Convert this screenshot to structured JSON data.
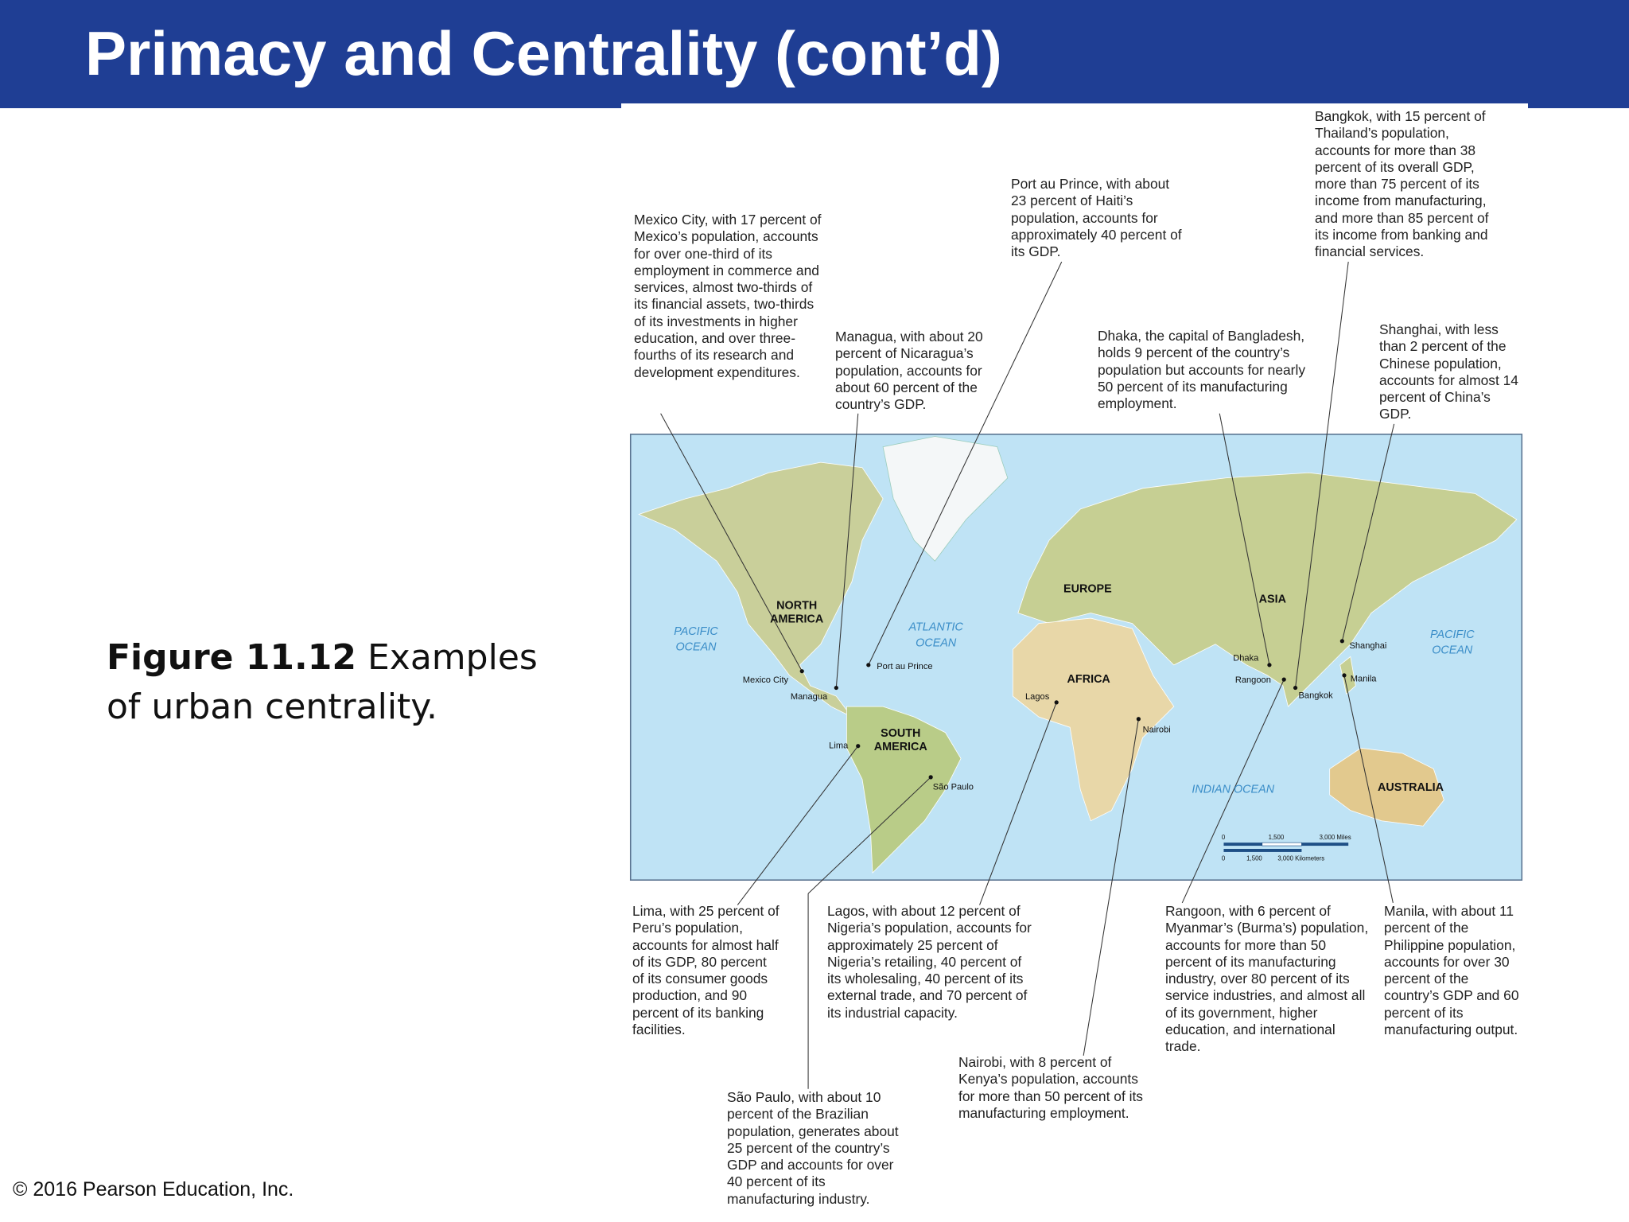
{
  "header": {
    "title": "Primacy and Centrality (cont’d)"
  },
  "caption": {
    "label": "Figure 11.12",
    "text": "Examples of urban centrality."
  },
  "footer": {
    "copyright": "© 2016 Pearson Education, Inc."
  },
  "callouts": [
    {
      "text": "Mexico City, with 17 percent of Mexico’s population, accounts for over one-third of its employment in commerce and services, almost two-thirds of its financial assets, two-thirds of its investments in higher education, and over three-fourths of its research and development expenditures."
    },
    {
      "text": "Managua, with about 20 percent of Nicaragua’s population, accounts for about 60 percent of the country’s GDP."
    },
    {
      "text": "Port au Prince, with about 23 percent of Haiti’s population, accounts for approximately 40 percent of its GDP."
    },
    {
      "text": "Dhaka, the capital of Bangladesh, holds 9 percent of the country’s population but accounts for nearly 50 percent of its manufacturing employment."
    },
    {
      "text": "Bangkok, with 15 percent of Thailand’s population, accounts for more than 38 percent of its overall GDP, more than 75 percent of its income from manufacturing, and more than 85 percent of its income from banking and financial services."
    },
    {
      "text": "Shanghai, with less than 2 percent of the Chinese population, accounts for almost 14 percent of China’s GDP."
    },
    {
      "text": "Lima, with 25 percent of Peru’s population, accounts for almost half of its GDP, 80 percent of its consumer goods production, and 90 percent of its banking facilities."
    },
    {
      "text": "Lagos, with about 12 percent of Nigeria’s population, accounts for approximately 25 percent of Nigeria’s retailing, 40 percent of its wholesaling, 40 percent of its external trade, and 70 percent of its industrial capacity."
    },
    {
      "text": "Rangoon, with 6 percent of Myanmar’s (Burma’s) population, accounts for more than 50 percent of its manufacturing industry, over 80 percent of its service industries, and almost all of its government, higher education, and international trade."
    },
    {
      "text": "Manila, with about 11 percent of the Philippine population, accounts for over 30 percent of the country’s GDP and 60 percent of its manufacturing output."
    },
    {
      "text": "Nairobi, with 8 percent of Kenya’s population, accounts for more than 50 percent of its manufacturing employment."
    },
    {
      "text": "São Paulo, with about 10 percent of the Brazilian population, generates about 25 percent of the country’s GDP and accounts for over 40 percent of its manufacturing industry."
    }
  ],
  "map": {
    "regions": [
      {
        "lines": [
          "NORTH",
          "AMERICA"
        ]
      },
      {
        "lines": [
          "SOUTH",
          "AMERICA"
        ]
      },
      {
        "lines": [
          "EUROPE"
        ]
      },
      {
        "lines": [
          "ASIA"
        ]
      },
      {
        "lines": [
          "AFRICA"
        ]
      },
      {
        "lines": [
          "AUSTRALIA"
        ]
      }
    ],
    "oceans": [
      {
        "lines": [
          "PACIFIC",
          "OCEAN"
        ]
      },
      {
        "lines": [
          "ATLANTIC",
          "OCEAN"
        ]
      },
      {
        "lines": [
          "INDIAN OCEAN"
        ]
      },
      {
        "lines": [
          "PACIFIC",
          "OCEAN"
        ]
      }
    ],
    "cities": [
      "Mexico City",
      "Managua",
      "Port au Prince",
      "Dhaka",
      "Bangkok",
      "Shanghai",
      "Lima",
      "Lagos",
      "Rangoon",
      "Manila",
      "Nairobi",
      "São Paulo"
    ],
    "scale": {
      "miles": [
        "0",
        "1,500",
        "3,000 Miles"
      ],
      "kilometers": [
        "0",
        "1,500",
        "3,000 Kilometers"
      ]
    }
  }
}
